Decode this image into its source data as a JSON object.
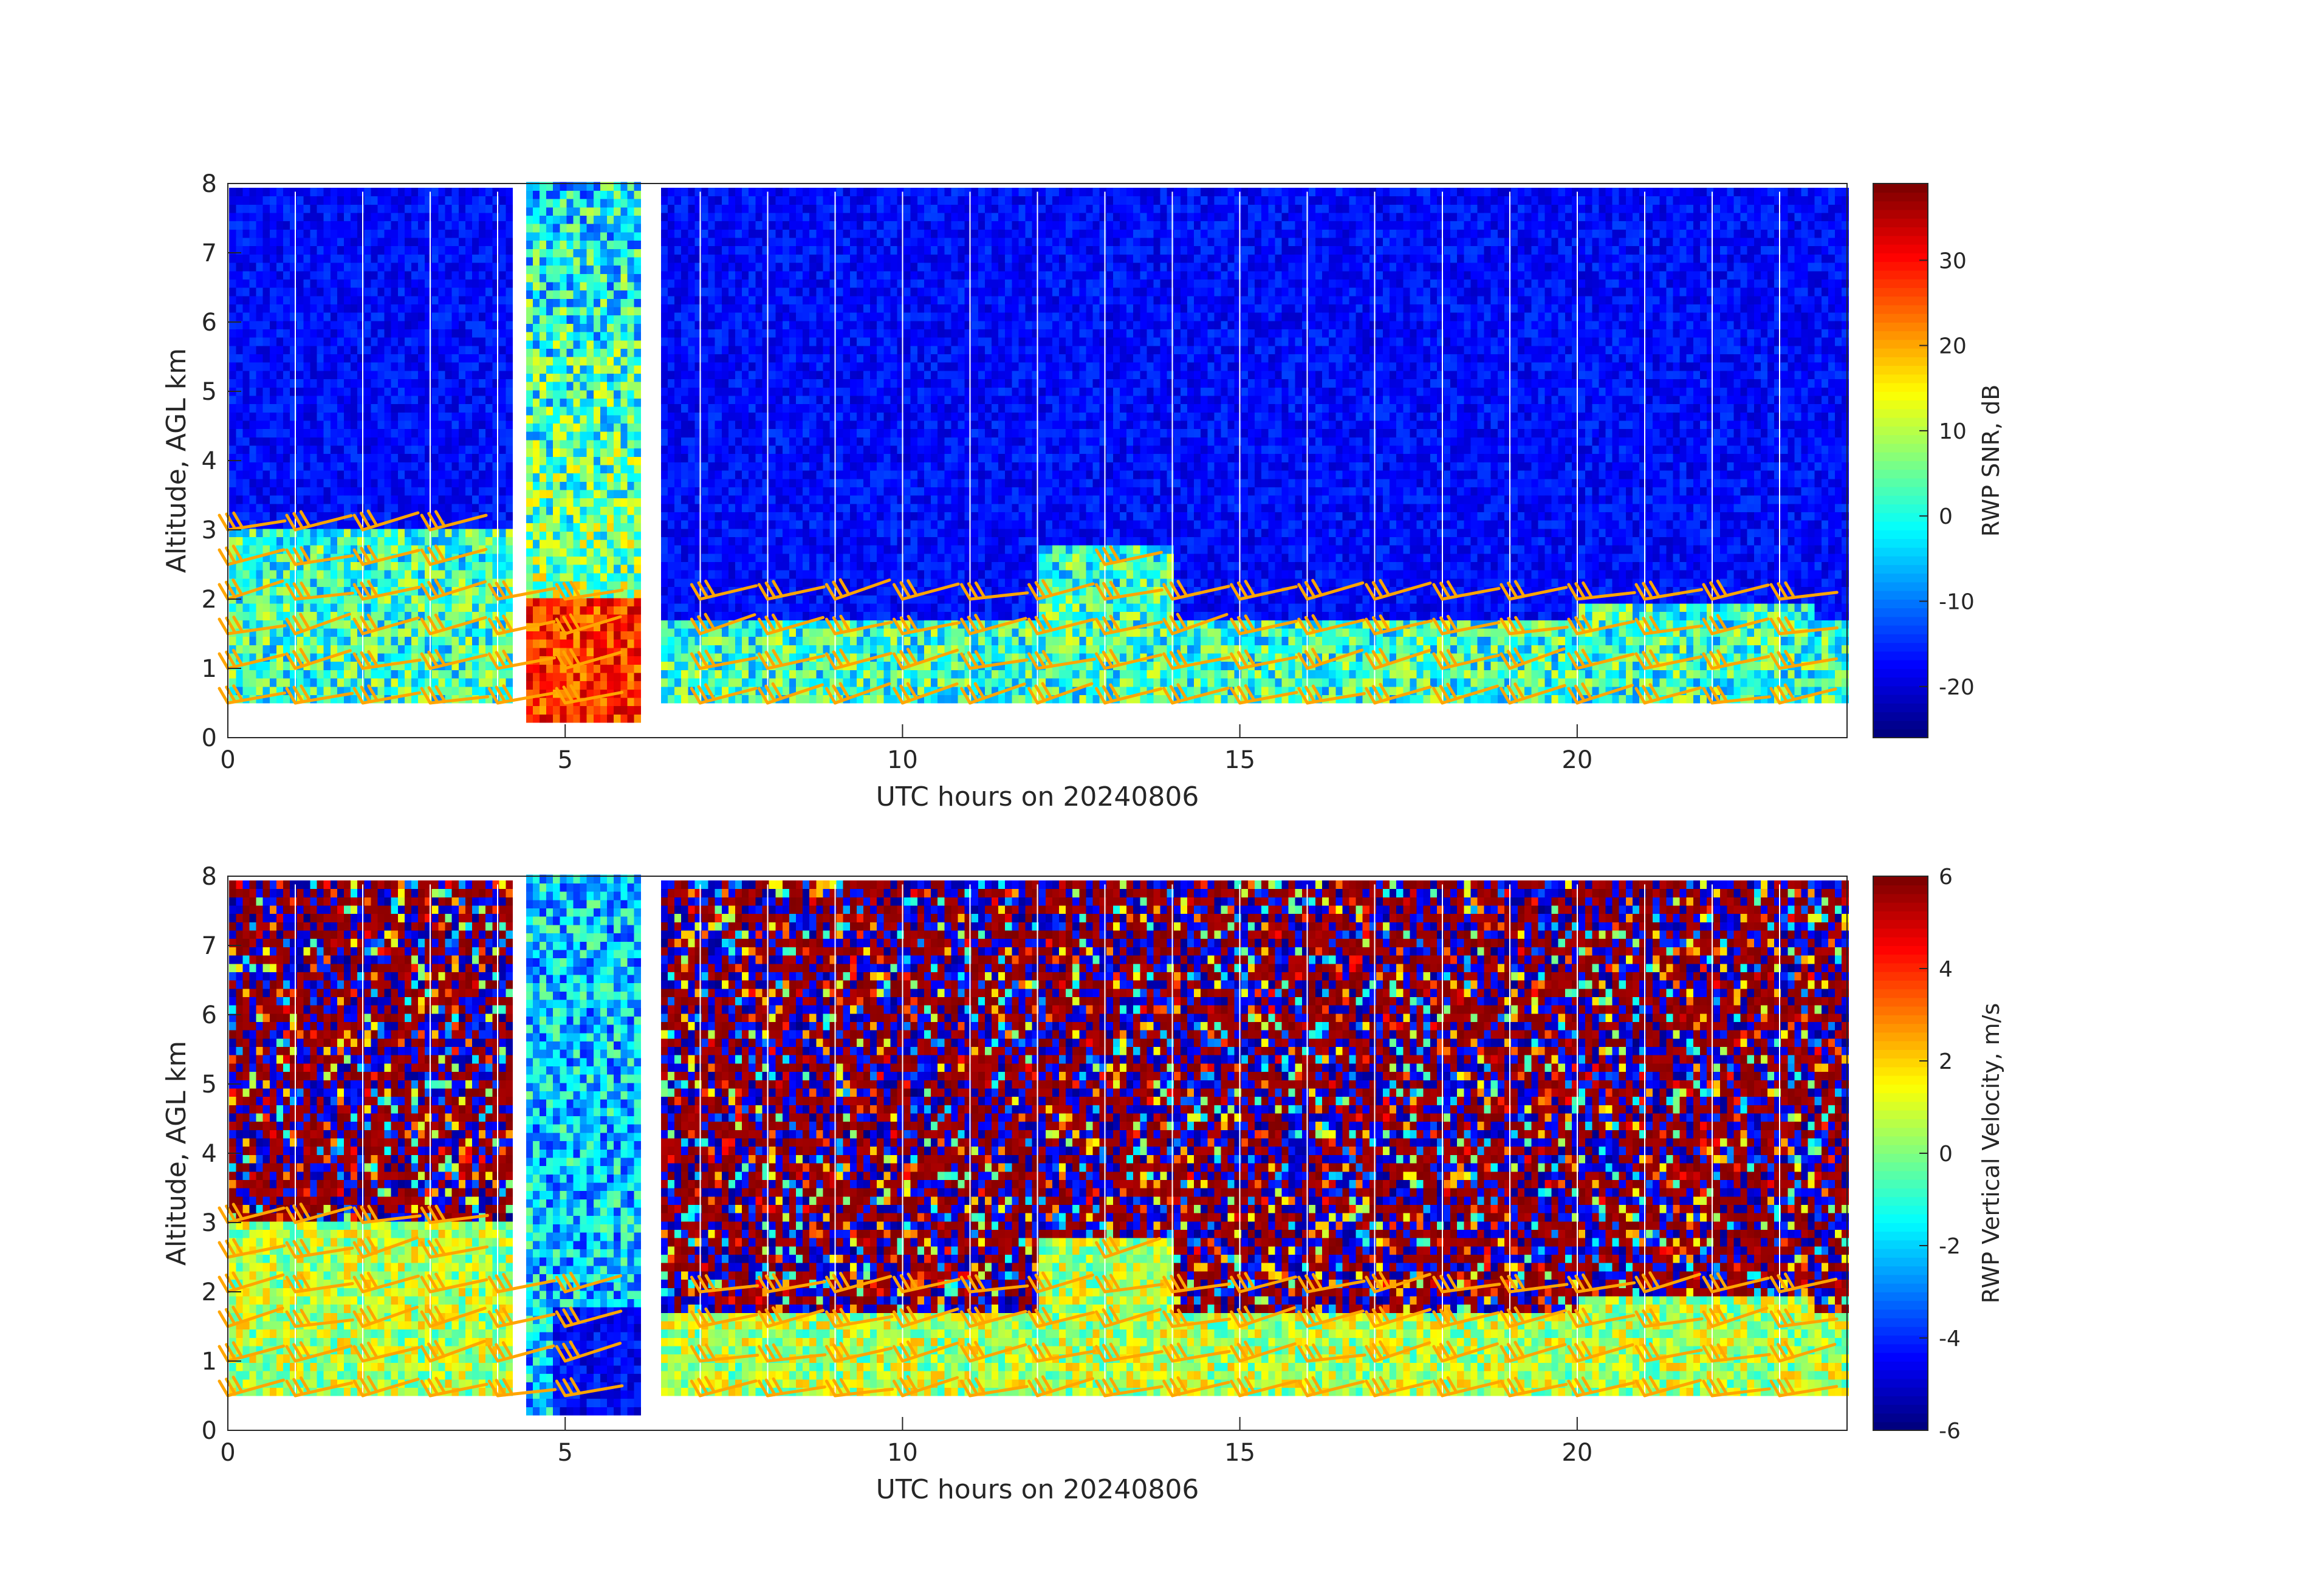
{
  "chart_data": [
    {
      "type": "heatmap",
      "title": "",
      "xlabel": "UTC hours on 20240806",
      "ylabel": "Altitude, AGL km",
      "xlim": [
        0,
        24
      ],
      "ylim": [
        0,
        8
      ],
      "xticks": [
        0,
        5,
        10,
        15,
        20
      ],
      "yticks": [
        0,
        1,
        2,
        3,
        4,
        5,
        6,
        7,
        8
      ],
      "colorbar": {
        "label": "RWP SNR, dB",
        "range": [
          -26,
          39
        ],
        "ticks": [
          -20,
          -10,
          0,
          10,
          20,
          30
        ],
        "colormap": "jet"
      },
      "data_gaps_hours": [
        [
          4.2,
          4.35
        ],
        [
          6.05,
          6.35
        ]
      ],
      "overlay": "wind barbs (orange) at 0.5, 1, 1.5, 2, 2.5, 3 km altitude",
      "overlay_color": "#FFA500"
    },
    {
      "type": "heatmap",
      "title": "",
      "xlabel": "UTC hours on 20240806",
      "ylabel": "Altitude, AGL km",
      "xlim": [
        0,
        24
      ],
      "ylim": [
        0,
        8
      ],
      "xticks": [
        0,
        5,
        10,
        15,
        20
      ],
      "yticks": [
        0,
        1,
        2,
        3,
        4,
        5,
        6,
        7,
        8
      ],
      "colorbar": {
        "label": "RWP Vertical Velocity, m/s",
        "range": [
          -6,
          6
        ],
        "ticks": [
          -6,
          -4,
          -2,
          0,
          2,
          4,
          6
        ],
        "colormap": "jet"
      },
      "data_gaps_hours": [
        [
          4.2,
          4.35
        ],
        [
          6.05,
          6.35
        ]
      ],
      "overlay": "wind barbs (orange) at 0.5, 1, 1.5, 2, 2.5, 3 km altitude",
      "overlay_color": "#FFA500"
    }
  ]
}
